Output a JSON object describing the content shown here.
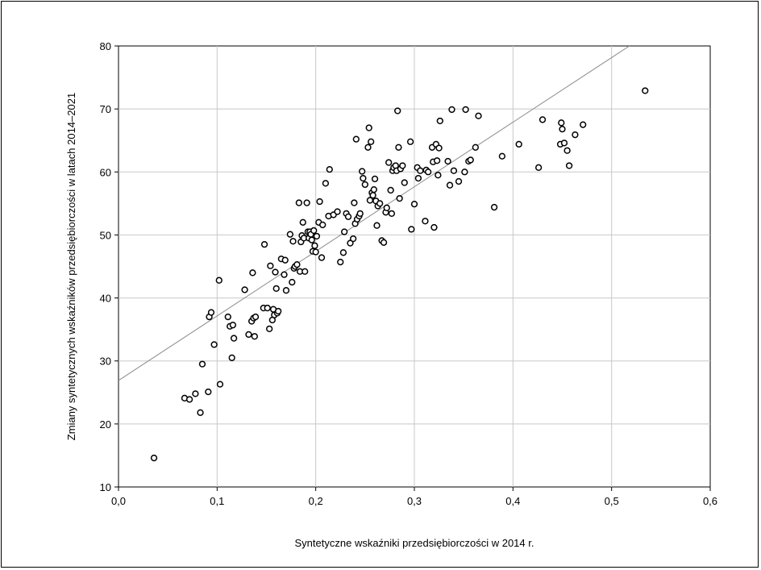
{
  "chart_data": {
    "type": "scatter",
    "title": "",
    "xlabel": "Syntetyczne wskaźniki przedsiębiorczości w 2014 r.",
    "ylabel": "Zmiany syntetycznych wskaźników przedsiębiorczości w latach 2014–2021",
    "xlim": [
      0,
      0.6
    ],
    "ylim": [
      10,
      80
    ],
    "xticks": [
      0,
      0.1,
      0.2,
      0.3,
      0.4,
      0.5,
      0.6
    ],
    "xtick_labels": [
      "0,0",
      "0,1",
      "0,2",
      "0,3",
      "0,4",
      "0,5",
      "0,6"
    ],
    "yticks": [
      10,
      20,
      30,
      40,
      50,
      60,
      70,
      80
    ],
    "ytick_labels": [
      "10",
      "20",
      "30",
      "40",
      "50",
      "60",
      "70",
      "80"
    ],
    "grid": true,
    "trend_line": {
      "intercept": 26.9,
      "slope": 102.5
    },
    "points": [
      [
        0.036,
        14.6
      ],
      [
        0.067,
        24.1
      ],
      [
        0.072,
        23.9
      ],
      [
        0.078,
        24.8
      ],
      [
        0.083,
        21.8
      ],
      [
        0.085,
        29.5
      ],
      [
        0.091,
        25.1
      ],
      [
        0.092,
        37.0
      ],
      [
        0.094,
        37.7
      ],
      [
        0.097,
        32.6
      ],
      [
        0.102,
        42.8
      ],
      [
        0.103,
        26.3
      ],
      [
        0.111,
        37.0
      ],
      [
        0.113,
        35.5
      ],
      [
        0.115,
        30.5
      ],
      [
        0.116,
        35.7
      ],
      [
        0.117,
        33.6
      ],
      [
        0.128,
        41.3
      ],
      [
        0.132,
        34.2
      ],
      [
        0.135,
        36.3
      ],
      [
        0.136,
        44.0
      ],
      [
        0.137,
        36.8
      ],
      [
        0.138,
        33.9
      ],
      [
        0.139,
        37.0
      ],
      [
        0.147,
        38.4
      ],
      [
        0.148,
        48.5
      ],
      [
        0.151,
        38.4
      ],
      [
        0.153,
        35.1
      ],
      [
        0.154,
        45.1
      ],
      [
        0.156,
        36.5
      ],
      [
        0.157,
        38.2
      ],
      [
        0.158,
        37.3
      ],
      [
        0.159,
        44.1
      ],
      [
        0.16,
        41.5
      ],
      [
        0.161,
        37.6
      ],
      [
        0.162,
        37.9
      ],
      [
        0.165,
        46.2
      ],
      [
        0.168,
        43.7
      ],
      [
        0.169,
        46.0
      ],
      [
        0.17,
        41.2
      ],
      [
        0.174,
        50.1
      ],
      [
        0.176,
        42.5
      ],
      [
        0.177,
        49.0
      ],
      [
        0.178,
        44.7
      ],
      [
        0.179,
        45.0
      ],
      [
        0.181,
        45.3
      ],
      [
        0.183,
        55.1
      ],
      [
        0.184,
        44.2
      ],
      [
        0.185,
        48.9
      ],
      [
        0.186,
        49.9
      ],
      [
        0.187,
        52.0
      ],
      [
        0.188,
        49.5
      ],
      [
        0.189,
        44.2
      ],
      [
        0.191,
        55.1
      ],
      [
        0.192,
        50.5
      ],
      [
        0.193,
        49.5
      ],
      [
        0.194,
        50.5
      ],
      [
        0.195,
        50.1
      ],
      [
        0.196,
        49.2
      ],
      [
        0.197,
        47.4
      ],
      [
        0.198,
        50.7
      ],
      [
        0.199,
        48.3
      ],
      [
        0.2,
        47.3
      ],
      [
        0.201,
        49.8
      ],
      [
        0.203,
        52.0
      ],
      [
        0.204,
        55.3
      ],
      [
        0.206,
        46.4
      ],
      [
        0.207,
        51.6
      ],
      [
        0.21,
        58.2
      ],
      [
        0.213,
        53.0
      ],
      [
        0.214,
        60.4
      ],
      [
        0.218,
        53.2
      ],
      [
        0.222,
        53.7
      ],
      [
        0.225,
        45.7
      ],
      [
        0.228,
        47.2
      ],
      [
        0.229,
        50.5
      ],
      [
        0.231,
        53.4
      ],
      [
        0.233,
        52.9
      ],
      [
        0.235,
        48.7
      ],
      [
        0.238,
        49.4
      ],
      [
        0.239,
        55.1
      ],
      [
        0.24,
        51.8
      ],
      [
        0.241,
        65.2
      ],
      [
        0.242,
        52.5
      ],
      [
        0.244,
        53.0
      ],
      [
        0.245,
        53.4
      ],
      [
        0.247,
        60.1
      ],
      [
        0.248,
        59.0
      ],
      [
        0.25,
        58.0
      ],
      [
        0.253,
        63.9
      ],
      [
        0.254,
        67.0
      ],
      [
        0.255,
        55.5
      ],
      [
        0.256,
        64.8
      ],
      [
        0.257,
        56.7
      ],
      [
        0.258,
        56.3
      ],
      [
        0.259,
        57.2
      ],
      [
        0.26,
        58.9
      ],
      [
        0.261,
        55.4
      ],
      [
        0.262,
        51.5
      ],
      [
        0.263,
        54.6
      ],
      [
        0.265,
        55.0
      ],
      [
        0.267,
        49.1
      ],
      [
        0.269,
        48.8
      ],
      [
        0.271,
        53.6
      ],
      [
        0.272,
        54.3
      ],
      [
        0.274,
        61.5
      ],
      [
        0.276,
        57.1
      ],
      [
        0.277,
        53.4
      ],
      [
        0.278,
        60.2
      ],
      [
        0.279,
        60.7
      ],
      [
        0.281,
        61.0
      ],
      [
        0.282,
        60.2
      ],
      [
        0.283,
        69.7
      ],
      [
        0.284,
        63.9
      ],
      [
        0.285,
        55.8
      ],
      [
        0.286,
        60.5
      ],
      [
        0.288,
        61.0
      ],
      [
        0.29,
        58.3
      ],
      [
        0.296,
        64.8
      ],
      [
        0.297,
        50.9
      ],
      [
        0.3,
        54.9
      ],
      [
        0.303,
        60.7
      ],
      [
        0.304,
        59.0
      ],
      [
        0.306,
        60.2
      ],
      [
        0.311,
        52.2
      ],
      [
        0.312,
        60.3
      ],
      [
        0.314,
        60.0
      ],
      [
        0.318,
        63.9
      ],
      [
        0.319,
        61.6
      ],
      [
        0.32,
        51.2
      ],
      [
        0.322,
        64.4
      ],
      [
        0.323,
        61.8
      ],
      [
        0.324,
        59.5
      ],
      [
        0.325,
        63.8
      ],
      [
        0.326,
        68.1
      ],
      [
        0.334,
        61.7
      ],
      [
        0.336,
        57.9
      ],
      [
        0.338,
        69.9
      ],
      [
        0.34,
        60.2
      ],
      [
        0.345,
        58.5
      ],
      [
        0.351,
        60.0
      ],
      [
        0.352,
        69.9
      ],
      [
        0.355,
        61.7
      ],
      [
        0.357,
        61.9
      ],
      [
        0.362,
        63.9
      ],
      [
        0.365,
        68.9
      ],
      [
        0.381,
        54.4
      ],
      [
        0.389,
        62.5
      ],
      [
        0.406,
        64.4
      ],
      [
        0.426,
        60.7
      ],
      [
        0.43,
        68.3
      ],
      [
        0.448,
        64.4
      ],
      [
        0.449,
        67.8
      ],
      [
        0.45,
        66.8
      ],
      [
        0.452,
        64.6
      ],
      [
        0.455,
        63.4
      ],
      [
        0.457,
        61.0
      ],
      [
        0.463,
        65.9
      ],
      [
        0.471,
        67.5
      ],
      [
        0.534,
        72.9
      ]
    ]
  }
}
